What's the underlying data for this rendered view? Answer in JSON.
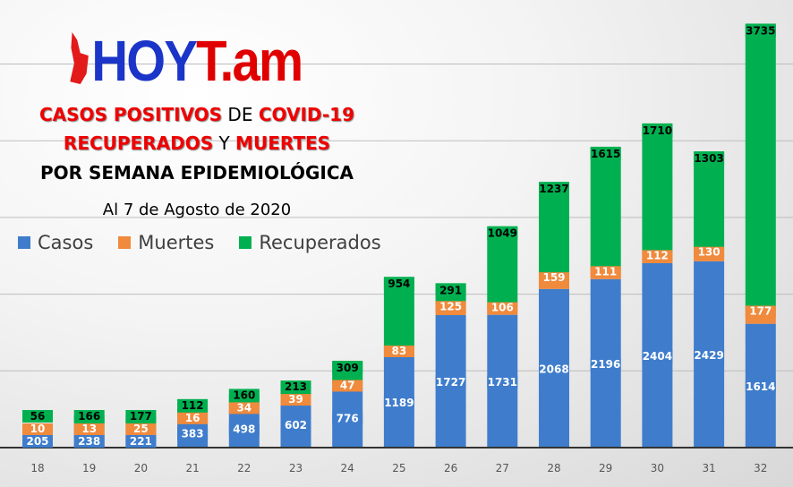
{
  "logo": {
    "text_blue": "HOY",
    "text_red": "T.am"
  },
  "title": {
    "line1_a": "CASOS POSITIVOS",
    "line1_b": " DE ",
    "line1_c": "COVID-19",
    "line2_a": "RECUPERADOS",
    "line2_b": " Y ",
    "line2_c": "MUERTES",
    "line3": "POR SEMANA EPIDEMIOLÓGICA",
    "date": "Al 7 de Agosto de 2020"
  },
  "chart_data": {
    "type": "bar",
    "stacked": true,
    "title": "CASOS POSITIVOS DE COVID-19 RECUPERADOS Y MUERTES POR SEMANA EPIDEMIOLÓGICA",
    "xlabel": "",
    "ylabel": "",
    "categories": [
      "18",
      "19",
      "20",
      "21",
      "22",
      "23",
      "24",
      "25",
      "26",
      "27",
      "28",
      "29",
      "30",
      "31",
      "32"
    ],
    "series": [
      {
        "name": "Casos",
        "color": "#3f7dcc",
        "label_color": "#ffffff",
        "values": [
          205,
          238,
          221,
          383,
          498,
          602,
          776,
          1189,
          1727,
          1731,
          2068,
          2196,
          2404,
          2429,
          1614
        ]
      },
      {
        "name": "Muertes",
        "color": "#f08a3c",
        "label_color": "#ffffff",
        "values": [
          10,
          13,
          25,
          16,
          34,
          39,
          47,
          83,
          125,
          106,
          159,
          111,
          112,
          130,
          177
        ]
      },
      {
        "name": "Recuperados",
        "color": "#00b050",
        "label_color": "#000000",
        "values": [
          56,
          166,
          177,
          112,
          160,
          213,
          309,
          954,
          291,
          1049,
          1237,
          1615,
          1710,
          1303,
          3735
        ]
      }
    ],
    "ylim": [
      0,
      6000
    ],
    "grid": true,
    "gridlines": [
      1000,
      2000,
      3000,
      4000,
      5000
    ],
    "legend": "top-left"
  }
}
